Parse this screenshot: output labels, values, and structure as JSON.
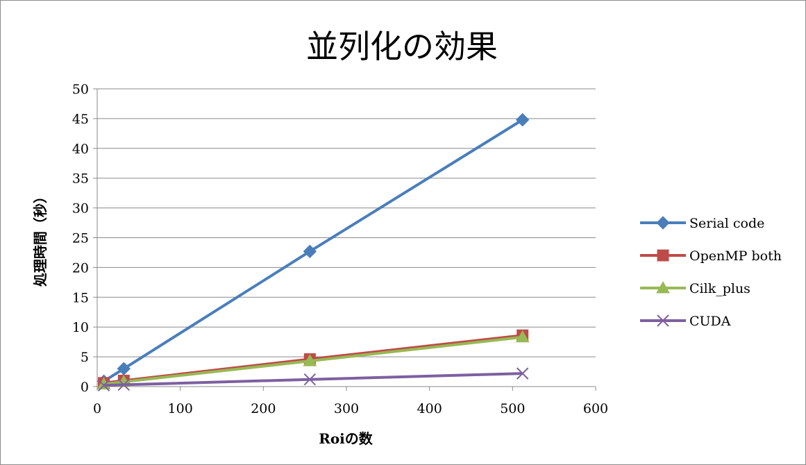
{
  "chart_data": {
    "type": "line",
    "title": "並列化の効果",
    "xlabel": "Roiの数",
    "ylabel": "処理時間（秒）",
    "xlim": [
      0,
      600
    ],
    "ylim": [
      0,
      50
    ],
    "x_ticks": [
      0,
      100,
      200,
      300,
      400,
      500,
      600
    ],
    "y_ticks": [
      0,
      5,
      10,
      15,
      20,
      25,
      30,
      35,
      40,
      45,
      50
    ],
    "grid": "horizontal",
    "legend_position": "right",
    "series": [
      {
        "name": "Serial code",
        "color": "#4a7ebb",
        "marker": "diamond",
        "x": [
          8,
          32,
          256,
          512
        ],
        "y": [
          0.9,
          3.0,
          22.7,
          44.8
        ]
      },
      {
        "name": "OpenMP both",
        "color": "#be4b48",
        "marker": "square",
        "x": [
          8,
          32,
          256,
          512
        ],
        "y": [
          0.6,
          1.0,
          4.6,
          8.6
        ]
      },
      {
        "name": "Cilk_plus",
        "color": "#98b954",
        "marker": "triangle",
        "x": [
          8,
          32,
          256,
          512
        ],
        "y": [
          0.4,
          0.8,
          4.3,
          8.3
        ]
      },
      {
        "name": "CUDA",
        "color": "#7d60a0",
        "marker": "x",
        "x": [
          8,
          32,
          256,
          512
        ],
        "y": [
          0.2,
          0.3,
          1.2,
          2.2
        ]
      }
    ]
  }
}
